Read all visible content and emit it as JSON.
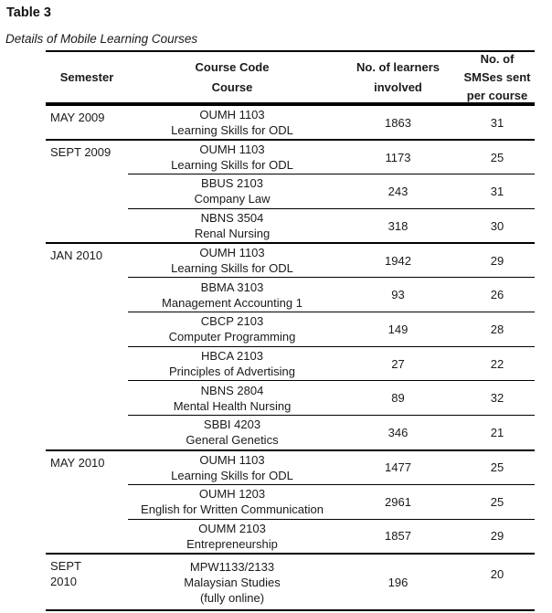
{
  "page": {
    "title": "Table 3",
    "subtitle": "Details of Mobile Learning Courses"
  },
  "table": {
    "headers": {
      "semester": "Semester",
      "course_lines": [
        "Course Code",
        "Course"
      ],
      "learners_lines": [
        "No. of learners",
        "involved"
      ],
      "sms_lines": [
        "No. of",
        "SMSes sent",
        "per course"
      ]
    },
    "rows": [
      {
        "semester_lines": [
          "MAY 2009"
        ],
        "course_lines": [
          "OUMH 1103",
          "Learning Skills for ODL"
        ],
        "learners": "1863",
        "sms": "31",
        "group_start": true
      },
      {
        "semester_lines": [
          "SEPT 2009"
        ],
        "course_lines": [
          "OUMH 1103",
          "Learning Skills for ODL"
        ],
        "learners": "1173",
        "sms": "25",
        "group_start": true
      },
      {
        "semester_lines": [],
        "course_lines": [
          "BBUS 2103",
          "Company Law"
        ],
        "learners": "243",
        "sms": "31",
        "group_start": false
      },
      {
        "semester_lines": [],
        "course_lines": [
          "NBNS 3504",
          "Renal Nursing"
        ],
        "learners": "318",
        "sms": "30",
        "group_start": false
      },
      {
        "semester_lines": [
          "JAN 2010"
        ],
        "course_lines": [
          "OUMH 1103",
          "Learning Skills for ODL"
        ],
        "learners": "1942",
        "sms": "29",
        "group_start": true
      },
      {
        "semester_lines": [],
        "course_lines": [
          "BBMA 3103",
          "Management Accounting 1"
        ],
        "learners": "93",
        "sms": "26",
        "group_start": false
      },
      {
        "semester_lines": [],
        "course_lines": [
          "CBCP 2103",
          "Computer Programming"
        ],
        "learners": "149",
        "sms": "28",
        "group_start": false
      },
      {
        "semester_lines": [],
        "course_lines": [
          "HBCA 2103",
          "Principles of Advertising"
        ],
        "learners": "27",
        "sms": "22",
        "group_start": false
      },
      {
        "semester_lines": [],
        "course_lines": [
          "NBNS 2804",
          "Mental Health Nursing"
        ],
        "learners": "89",
        "sms": "32",
        "group_start": false
      },
      {
        "semester_lines": [],
        "course_lines": [
          "SBBI 4203",
          "General Genetics"
        ],
        "learners": "346",
        "sms": "21",
        "group_start": false
      },
      {
        "semester_lines": [
          "MAY 2010"
        ],
        "course_lines": [
          "OUMH 1103",
          "Learning Skills for ODL"
        ],
        "learners": "1477",
        "sms": "25",
        "group_start": true
      },
      {
        "semester_lines": [],
        "course_lines": [
          "OUMH 1203",
          "English for Written Communication"
        ],
        "learners": "2961",
        "sms": "25",
        "group_start": false
      },
      {
        "semester_lines": [],
        "course_lines": [
          "OUMM 2103",
          "Entrepreneurship"
        ],
        "learners": "1857",
        "sms": "29",
        "group_start": false
      },
      {
        "semester_lines": [
          "SEPT",
          "2010"
        ],
        "course_lines": [
          "MPW1133/2133",
          "Malaysian Studies",
          "(fully online)"
        ],
        "learners": "196",
        "sms": "20",
        "group_start": true,
        "tall": true,
        "sms_raised": true
      }
    ]
  }
}
